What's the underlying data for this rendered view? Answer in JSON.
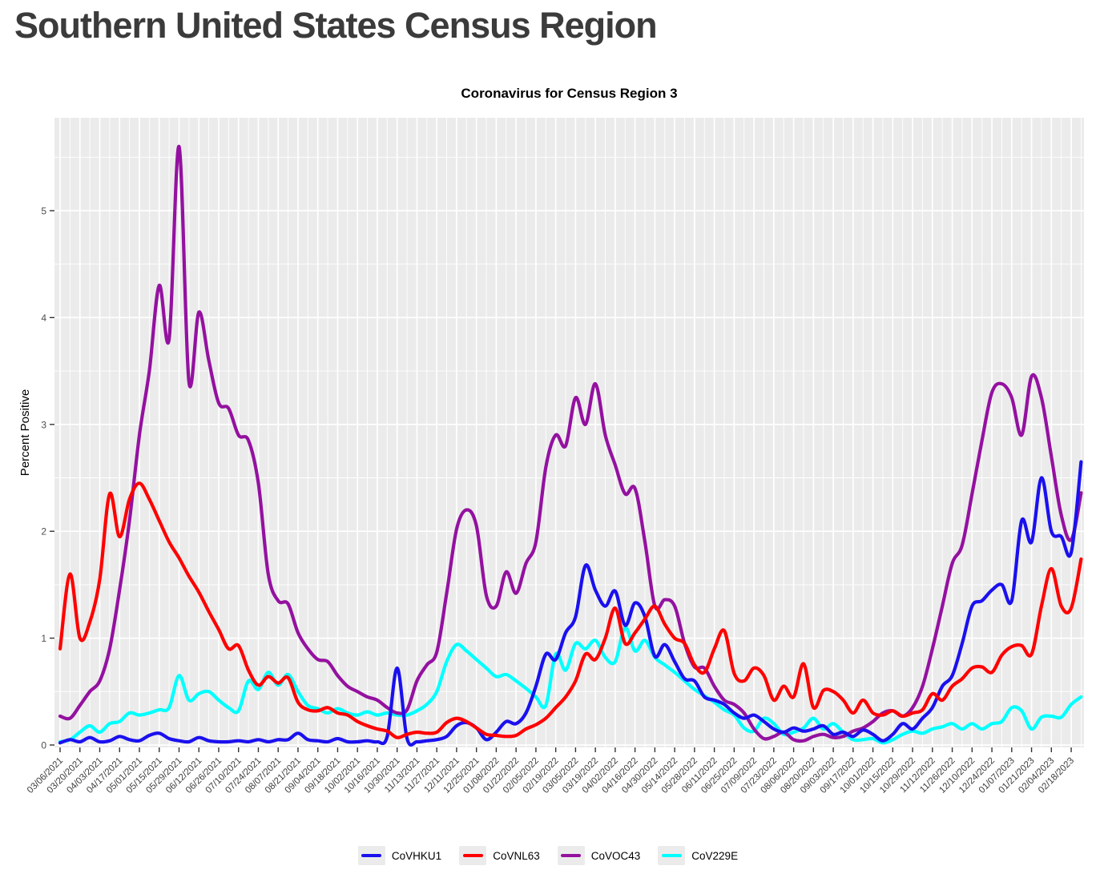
{
  "page": {
    "title": "Southern United States Census Region"
  },
  "chart_data": {
    "type": "line",
    "title": "Coronavirus for Census Region 3",
    "xlabel": "",
    "ylabel": "Percent Positive",
    "ylim": [
      0,
      5.87
    ],
    "y_ticks": [
      0,
      1,
      2,
      3,
      4,
      5
    ],
    "grid": "white major and minor gridlines on gray panel",
    "panel_color": "#EBEBEB",
    "legend_position": "bottom",
    "points_per_tick": 2,
    "x_tick_labels": [
      "03/06/2021",
      "03/20/2021",
      "04/03/2021",
      "04/17/2021",
      "05/01/2021",
      "05/15/2021",
      "05/29/2021",
      "06/12/2021",
      "06/26/2021",
      "07/10/2021",
      "07/24/2021",
      "08/07/2021",
      "08/21/2021",
      "09/04/2021",
      "09/18/2021",
      "10/02/2021",
      "10/16/2021",
      "10/30/2021",
      "11/13/2021",
      "11/27/2021",
      "12/11/2021",
      "12/25/2021",
      "01/08/2022",
      "01/22/2022",
      "02/05/2022",
      "02/19/2022",
      "03/05/2022",
      "03/19/2022",
      "04/02/2022",
      "04/16/2022",
      "04/30/2022",
      "05/14/2022",
      "05/28/2022",
      "06/11/2022",
      "06/25/2022",
      "07/09/2022",
      "07/23/2022",
      "08/06/2022",
      "08/20/2022",
      "09/03/2022",
      "09/17/2022",
      "10/01/2022",
      "10/15/2022",
      "10/29/2022",
      "11/12/2022",
      "11/26/2022",
      "12/10/2022",
      "12/24/2022",
      "01/07/2023",
      "01/21/2023",
      "02/04/2023",
      "02/18/2023"
    ],
    "series": [
      {
        "name": "CoVHKU1",
        "color": "#1A10EE",
        "values": [
          0.02,
          0.05,
          0.03,
          0.07,
          0.03,
          0.04,
          0.08,
          0.05,
          0.04,
          0.09,
          0.11,
          0.06,
          0.04,
          0.03,
          0.07,
          0.04,
          0.03,
          0.03,
          0.04,
          0.03,
          0.05,
          0.03,
          0.05,
          0.05,
          0.11,
          0.05,
          0.04,
          0.03,
          0.06,
          0.03,
          0.03,
          0.04,
          0.03,
          0.08,
          0.72,
          0.06,
          0.03,
          0.04,
          0.05,
          0.08,
          0.18,
          0.21,
          0.16,
          0.05,
          0.12,
          0.22,
          0.2,
          0.3,
          0.55,
          0.85,
          0.8,
          1.05,
          1.2,
          1.68,
          1.45,
          1.3,
          1.44,
          1.12,
          1.33,
          1.2,
          0.83,
          0.94,
          0.78,
          0.62,
          0.6,
          0.45,
          0.42,
          0.38,
          0.3,
          0.25,
          0.28,
          0.22,
          0.15,
          0.12,
          0.16,
          0.13,
          0.15,
          0.18,
          0.1,
          0.12,
          0.08,
          0.14,
          0.1,
          0.04,
          0.1,
          0.2,
          0.15,
          0.25,
          0.35,
          0.55,
          0.65,
          0.95,
          1.3,
          1.35,
          1.45,
          1.5,
          1.35,
          2.1,
          1.9,
          2.5,
          2.0,
          1.95,
          1.8,
          2.65
        ]
      },
      {
        "name": "CoVNL63",
        "color": "#FF0000",
        "values": [
          0.9,
          1.6,
          1.0,
          1.15,
          1.55,
          2.35,
          1.95,
          2.3,
          2.45,
          2.3,
          2.1,
          1.9,
          1.75,
          1.58,
          1.43,
          1.25,
          1.08,
          0.9,
          0.93,
          0.7,
          0.56,
          0.64,
          0.58,
          0.63,
          0.4,
          0.33,
          0.32,
          0.35,
          0.3,
          0.28,
          0.22,
          0.18,
          0.15,
          0.13,
          0.07,
          0.1,
          0.12,
          0.11,
          0.12,
          0.21,
          0.25,
          0.22,
          0.16,
          0.1,
          0.09,
          0.08,
          0.09,
          0.15,
          0.19,
          0.25,
          0.35,
          0.45,
          0.6,
          0.85,
          0.8,
          1.0,
          1.28,
          0.95,
          1.05,
          1.18,
          1.3,
          1.13,
          1.0,
          0.95,
          0.75,
          0.68,
          0.9,
          1.07,
          0.67,
          0.6,
          0.72,
          0.65,
          0.42,
          0.55,
          0.45,
          0.76,
          0.35,
          0.51,
          0.5,
          0.42,
          0.3,
          0.42,
          0.3,
          0.28,
          0.32,
          0.27,
          0.3,
          0.33,
          0.48,
          0.42,
          0.55,
          0.62,
          0.72,
          0.73,
          0.68,
          0.84,
          0.92,
          0.93,
          0.85,
          1.3,
          1.65,
          1.3,
          1.28,
          1.74
        ]
      },
      {
        "name": "CoVOC43",
        "color": "#9411A0",
        "values": [
          0.27,
          0.25,
          0.37,
          0.5,
          0.6,
          0.9,
          1.45,
          2.1,
          2.9,
          3.5,
          4.3,
          3.8,
          5.6,
          3.4,
          4.05,
          3.6,
          3.2,
          3.15,
          2.9,
          2.85,
          2.45,
          1.6,
          1.35,
          1.32,
          1.05,
          0.9,
          0.8,
          0.78,
          0.65,
          0.55,
          0.5,
          0.45,
          0.42,
          0.35,
          0.3,
          0.33,
          0.6,
          0.75,
          0.87,
          1.42,
          2.02,
          2.2,
          2.05,
          1.4,
          1.3,
          1.62,
          1.42,
          1.7,
          1.9,
          2.6,
          2.9,
          2.8,
          3.25,
          3.0,
          3.38,
          2.9,
          2.62,
          2.35,
          2.4,
          1.9,
          1.3,
          1.36,
          1.3,
          0.95,
          0.73,
          0.72,
          0.55,
          0.42,
          0.38,
          0.3,
          0.15,
          0.06,
          0.08,
          0.12,
          0.05,
          0.04,
          0.08,
          0.1,
          0.07,
          0.08,
          0.13,
          0.16,
          0.22,
          0.3,
          0.32,
          0.27,
          0.35,
          0.55,
          0.9,
          1.3,
          1.7,
          1.87,
          2.35,
          2.85,
          3.3,
          3.38,
          3.25,
          2.9,
          3.45,
          3.25,
          2.7,
          2.15,
          1.92,
          2.36
        ]
      },
      {
        "name": "CoV229E",
        "color": "#00FFFF",
        "values": [
          0.03,
          0.05,
          0.12,
          0.18,
          0.12,
          0.2,
          0.22,
          0.3,
          0.28,
          0.3,
          0.33,
          0.35,
          0.65,
          0.42,
          0.48,
          0.5,
          0.42,
          0.35,
          0.32,
          0.6,
          0.52,
          0.68,
          0.56,
          0.66,
          0.5,
          0.37,
          0.34,
          0.3,
          0.34,
          0.3,
          0.28,
          0.31,
          0.28,
          0.3,
          0.28,
          0.28,
          0.32,
          0.38,
          0.5,
          0.78,
          0.94,
          0.88,
          0.8,
          0.72,
          0.64,
          0.66,
          0.6,
          0.53,
          0.45,
          0.37,
          0.85,
          0.7,
          0.95,
          0.9,
          0.98,
          0.82,
          0.78,
          1.1,
          0.88,
          0.98,
          0.82,
          0.75,
          0.68,
          0.6,
          0.52,
          0.46,
          0.4,
          0.33,
          0.28,
          0.16,
          0.13,
          0.25,
          0.2,
          0.1,
          0.12,
          0.16,
          0.25,
          0.15,
          0.2,
          0.12,
          0.05,
          0.05,
          0.06,
          0.02,
          0.05,
          0.1,
          0.13,
          0.11,
          0.15,
          0.17,
          0.2,
          0.15,
          0.2,
          0.15,
          0.2,
          0.22,
          0.35,
          0.32,
          0.15,
          0.26,
          0.27,
          0.26,
          0.38,
          0.45
        ]
      }
    ]
  }
}
